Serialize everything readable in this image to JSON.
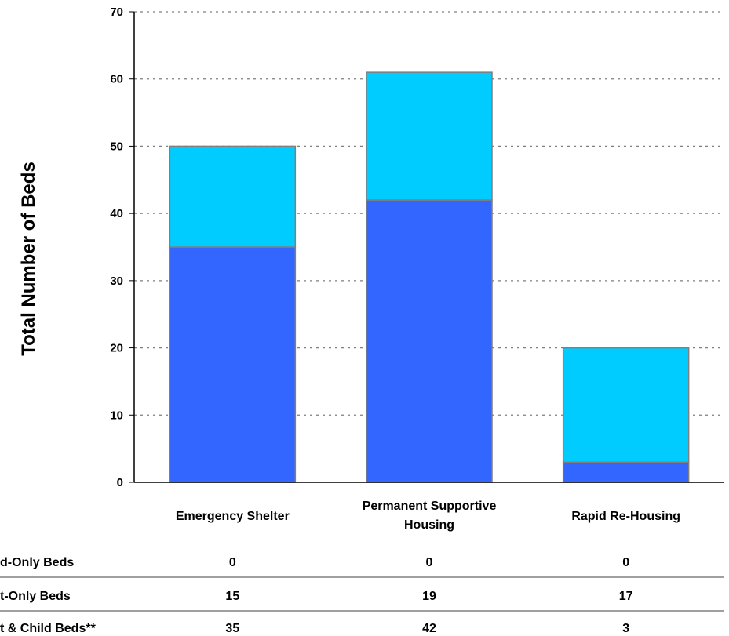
{
  "chart_data": {
    "type": "bar",
    "stacked": true,
    "title": "",
    "xlabel": "",
    "ylabel": "Total Number of Beds",
    "ylim": [
      0,
      70
    ],
    "yticks": [
      0,
      10,
      20,
      30,
      40,
      50,
      60,
      70
    ],
    "grid": "horizontal-dotted",
    "categories": [
      "Emergency Shelter",
      "Permanent Supportive Housing",
      "Rapid Re-Housing"
    ],
    "category_lines": [
      [
        "Emergency Shelter"
      ],
      [
        "Permanent Supportive",
        "Housing"
      ],
      [
        "Rapid Re-Housing"
      ]
    ],
    "series": [
      {
        "name": "Adult & Child Beds**",
        "values": [
          35,
          42,
          3
        ],
        "color": "#3366FF"
      },
      {
        "name": "Adult-Only Beds",
        "values": [
          15,
          19,
          17
        ],
        "color": "#00CCFF"
      },
      {
        "name": "Child-Only Beds",
        "values": [
          0,
          0,
          0
        ],
        "color": "#99CCFF"
      }
    ],
    "table_rows": [
      {
        "label": "Child-Only Beds",
        "shown_label": "d-Only Beds",
        "values": [
          "0",
          "0",
          "0"
        ]
      },
      {
        "label": "Adult-Only Beds",
        "shown_label": "t-Only Beds",
        "values": [
          "15",
          "19",
          "17"
        ]
      },
      {
        "label": "Adult & Child Beds**",
        "shown_label": "t & Child Beds**",
        "values": [
          "35",
          "42",
          "3"
        ]
      }
    ]
  }
}
